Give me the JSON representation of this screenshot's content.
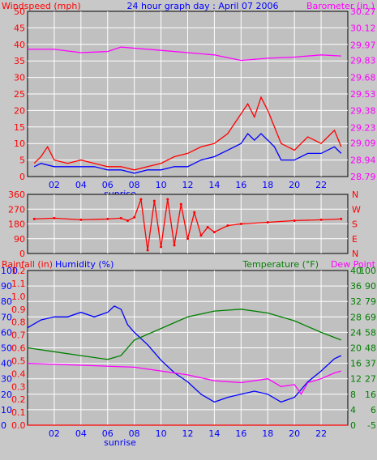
{
  "colors": {
    "background": "#c8c8c8",
    "plot_background": "#c0c0c0",
    "grid": "#ffffff",
    "wind": "#ff0000",
    "wind_avg": "#0000ff",
    "barometer": "#ff00ff",
    "direction": "#ff0000",
    "rainfall": "#ff0000",
    "humidity": "#0000ff",
    "temperature": "#008000",
    "dewpoint": "#ff00ff"
  },
  "header": {
    "left": "Windspeed (mph)",
    "title": "24 hour graph day : April 07 2006",
    "right": "Barometer (in.)"
  },
  "bottom_header": {
    "rain": "Rainfall (in)",
    "humidity": "Humidity (%)",
    "temp": "Temperature (°F)",
    "dew": "Dew Point"
  },
  "sunrise_label": "sunrise",
  "x_ticks": [
    "02",
    "04",
    "06",
    "08",
    "10",
    "12",
    "14",
    "16",
    "18",
    "20",
    "22"
  ],
  "chart_data": [
    {
      "type": "line",
      "x_hours": [
        0,
        24
      ],
      "left_axis": {
        "ticks": [
          0,
          5,
          10,
          15,
          20,
          25,
          30,
          35,
          40,
          45,
          50
        ],
        "ylim": [
          0,
          50
        ]
      },
      "right_axis": {
        "ticks": [
          "28.79",
          "28.94",
          "29.09",
          "29.23",
          "29.38",
          "29.53",
          "29.68",
          "29.83",
          "29.97",
          "30.12",
          "30.27"
        ],
        "ylim": [
          28.79,
          30.27
        ]
      },
      "series": [
        {
          "key": "wind_gust",
          "values": [
            [
              0.5,
              4
            ],
            [
              1,
              6
            ],
            [
              1.5,
              9
            ],
            [
              2,
              5
            ],
            [
              3,
              4
            ],
            [
              4,
              5
            ],
            [
              5,
              4
            ],
            [
              6,
              3
            ],
            [
              7,
              3
            ],
            [
              8,
              2
            ],
            [
              9,
              3
            ],
            [
              10,
              4
            ],
            [
              11,
              6
            ],
            [
              12,
              7
            ],
            [
              13,
              9
            ],
            [
              14,
              10
            ],
            [
              15,
              13
            ],
            [
              16,
              19
            ],
            [
              16.5,
              22
            ],
            [
              17,
              18
            ],
            [
              17.5,
              24
            ],
            [
              18,
              20
            ],
            [
              18.5,
              15
            ],
            [
              19,
              10
            ],
            [
              20,
              8
            ],
            [
              21,
              12
            ],
            [
              22,
              10
            ],
            [
              23,
              14
            ],
            [
              23.5,
              9
            ]
          ]
        },
        {
          "key": "wind_avg",
          "values": [
            [
              0.5,
              3
            ],
            [
              1,
              4
            ],
            [
              2,
              3
            ],
            [
              3,
              3
            ],
            [
              4,
              3
            ],
            [
              5,
              3
            ],
            [
              6,
              2
            ],
            [
              7,
              2
            ],
            [
              8,
              1
            ],
            [
              9,
              2
            ],
            [
              10,
              2
            ],
            [
              11,
              3
            ],
            [
              12,
              3
            ],
            [
              13,
              5
            ],
            [
              14,
              6
            ],
            [
              15,
              8
            ],
            [
              16,
              10
            ],
            [
              16.5,
              13
            ],
            [
              17,
              11
            ],
            [
              17.5,
              13
            ],
            [
              18,
              11
            ],
            [
              18.5,
              9
            ],
            [
              19,
              5
            ],
            [
              20,
              5
            ],
            [
              21,
              7
            ],
            [
              22,
              7
            ],
            [
              23,
              9
            ],
            [
              23.5,
              7
            ]
          ]
        },
        {
          "key": "barometer",
          "values": [
            [
              0,
              29.93
            ],
            [
              2,
              29.93
            ],
            [
              4,
              29.9
            ],
            [
              6,
              29.91
            ],
            [
              7,
              29.95
            ],
            [
              8,
              29.94
            ],
            [
              10,
              29.92
            ],
            [
              12,
              29.9
            ],
            [
              14,
              29.88
            ],
            [
              16,
              29.83
            ],
            [
              18,
              29.85
            ],
            [
              20,
              29.86
            ],
            [
              22,
              29.88
            ],
            [
              23.5,
              29.87
            ]
          ]
        }
      ]
    },
    {
      "type": "scatter",
      "x_hours": [
        0,
        24
      ],
      "left_axis": {
        "ticks": [
          0,
          90,
          180,
          270,
          360
        ],
        "ylim": [
          0,
          360
        ]
      },
      "right_axis": {
        "ticks": [
          "N",
          "E",
          "S",
          "W",
          "N"
        ]
      },
      "series": [
        {
          "key": "wind_direction",
          "values": [
            [
              0.5,
              210
            ],
            [
              2,
              215
            ],
            [
              4,
              205
            ],
            [
              6,
              210
            ],
            [
              7,
              215
            ],
            [
              7.5,
              200
            ],
            [
              8,
              220
            ],
            [
              8.5,
              330
            ],
            [
              9,
              20
            ],
            [
              9.5,
              320
            ],
            [
              10,
              40
            ],
            [
              10.5,
              330
            ],
            [
              11,
              50
            ],
            [
              11.5,
              300
            ],
            [
              12,
              90
            ],
            [
              12.5,
              250
            ],
            [
              13,
              110
            ],
            [
              13.5,
              160
            ],
            [
              14,
              130
            ],
            [
              15,
              170
            ],
            [
              16,
              180
            ],
            [
              18,
              190
            ],
            [
              20,
              200
            ],
            [
              22,
              205
            ],
            [
              23.5,
              210
            ]
          ]
        }
      ]
    },
    {
      "type": "line",
      "x_hours": [
        0,
        24
      ],
      "rain_axis": {
        "ticks": [
          "0.0",
          "0.1",
          "0.2",
          "0.3",
          "0.4",
          "0.5",
          "0.6",
          "0.7",
          "0.8",
          "0.9",
          "1.0",
          "1.1",
          "1.2"
        ],
        "ylim": [
          0,
          1.2
        ]
      },
      "humidity_axis": {
        "ticks": [
          0,
          10,
          20,
          30,
          40,
          50,
          60,
          70,
          80,
          90,
          100
        ],
        "ylim": [
          0,
          100
        ]
      },
      "temp_axis": {
        "ticks": [
          0,
          4,
          8,
          12,
          16,
          20,
          24,
          28,
          32,
          36,
          40
        ],
        "ylim": [
          0,
          40
        ]
      },
      "dew_axis": {
        "ticks": [
          -5,
          6,
          16,
          27,
          37,
          48,
          58,
          69,
          79,
          90,
          100
        ],
        "ylim": [
          -5,
          100
        ]
      },
      "series": [
        {
          "key": "rainfall",
          "values": [
            [
              0,
              0
            ],
            [
              24,
              0
            ]
          ]
        },
        {
          "key": "humidity",
          "values": [
            [
              0,
              63
            ],
            [
              1,
              68
            ],
            [
              2,
              70
            ],
            [
              3,
              70
            ],
            [
              4,
              73
            ],
            [
              5,
              70
            ],
            [
              6,
              73
            ],
            [
              6.5,
              77
            ],
            [
              7,
              75
            ],
            [
              7.5,
              65
            ],
            [
              8,
              60
            ],
            [
              9,
              52
            ],
            [
              10,
              42
            ],
            [
              11,
              34
            ],
            [
              12,
              28
            ],
            [
              13,
              20
            ],
            [
              14,
              15
            ],
            [
              15,
              18
            ],
            [
              16,
              20
            ],
            [
              17,
              22
            ],
            [
              18,
              20
            ],
            [
              19,
              15
            ],
            [
              20,
              18
            ],
            [
              21,
              28
            ],
            [
              22,
              35
            ],
            [
              23,
              43
            ],
            [
              23.5,
              45
            ]
          ]
        },
        {
          "key": "temperature",
          "values": [
            [
              0,
              20
            ],
            [
              2,
              19
            ],
            [
              4,
              18
            ],
            [
              6,
              17
            ],
            [
              7,
              18
            ],
            [
              8,
              22
            ],
            [
              10,
              25
            ],
            [
              12,
              28
            ],
            [
              14,
              29.5
            ],
            [
              16,
              30
            ],
            [
              18,
              29
            ],
            [
              20,
              27
            ],
            [
              22,
              24
            ],
            [
              23.5,
              22
            ]
          ]
        },
        {
          "key": "dewpoint",
          "values": [
            [
              0,
              16
            ],
            [
              4,
              15.5
            ],
            [
              8,
              15
            ],
            [
              10,
              14
            ],
            [
              12,
              13
            ],
            [
              14,
              11.5
            ],
            [
              16,
              11
            ],
            [
              18,
              12
            ],
            [
              19,
              10
            ],
            [
              20,
              10.5
            ],
            [
              20.5,
              8
            ],
            [
              21,
              11
            ],
            [
              22,
              12
            ],
            [
              23,
              13.5
            ],
            [
              23.5,
              14
            ]
          ]
        }
      ]
    }
  ]
}
